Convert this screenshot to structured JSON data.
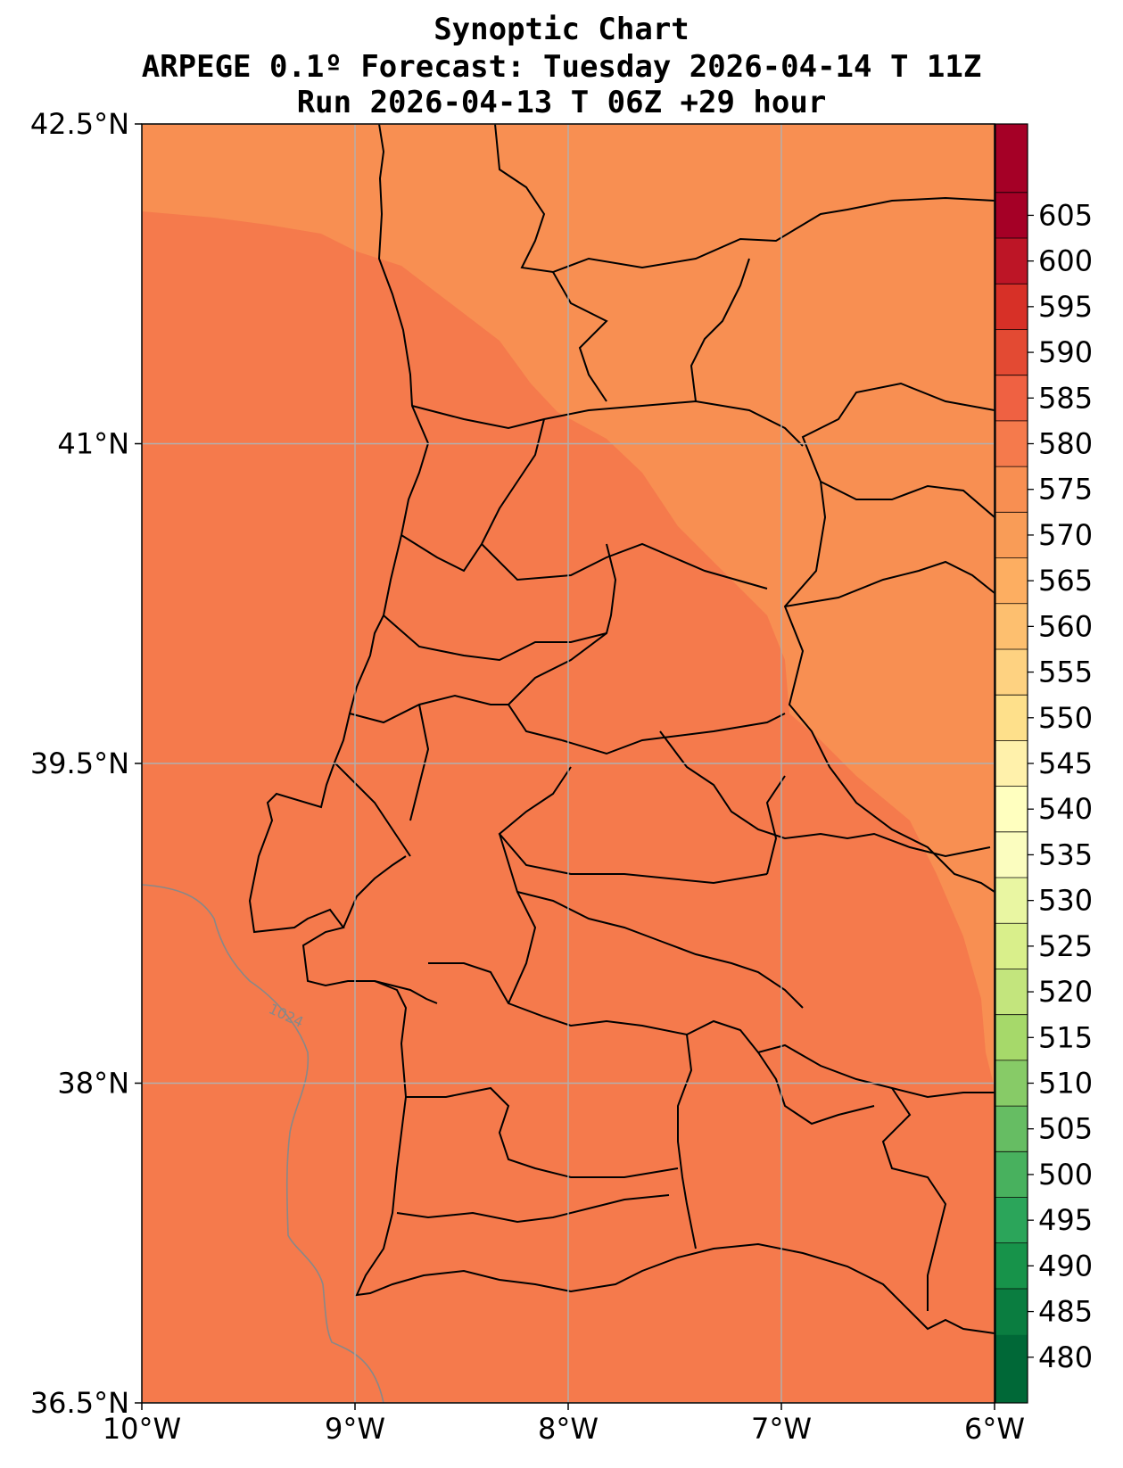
{
  "title": {
    "line1": "Synoptic Chart",
    "line2": "ARPEGE 0.1º Forecast: Tuesday 2026-04-14 T 11Z",
    "line3": "Run 2026-04-13 T 06Z +29 hour"
  },
  "axes": {
    "lon_ticks": [
      "10°W",
      "9°W",
      "8°W",
      "7°W",
      "6°W"
    ],
    "lat_ticks": [
      "42.5°N",
      "41°N",
      "39.5°N",
      "38°N",
      "36.5°N"
    ],
    "lon_range": [
      -10,
      -6
    ],
    "lat_range": [
      36.5,
      42.5
    ],
    "grid": true
  },
  "colorbar": {
    "levels": [
      480,
      485,
      490,
      495,
      500,
      505,
      510,
      515,
      520,
      525,
      530,
      535,
      540,
      545,
      550,
      555,
      560,
      565,
      570,
      575,
      580,
      585,
      590,
      595,
      600,
      605
    ],
    "colors": [
      "#006837",
      "#0a7d40",
      "#17934a",
      "#2ba55a",
      "#48b15e",
      "#66bd63",
      "#87cb67",
      "#a6d96a",
      "#c3e57d",
      "#d9ef8b",
      "#e9f6a2",
      "#fbfdbf",
      "#ffffbf",
      "#fff1ab",
      "#fee08b",
      "#fed281",
      "#fdbf6f",
      "#fdae61",
      "#f99c57",
      "#f88f52",
      "#f57a4c",
      "#ef6142",
      "#e34a33",
      "#d73027",
      "#bd1526",
      "#a50026"
    ]
  },
  "contour_label": "1024",
  "field": {
    "inner_color": "#f57a4c",
    "outer_color": "#f88f52",
    "isobar_color": "#888888"
  }
}
